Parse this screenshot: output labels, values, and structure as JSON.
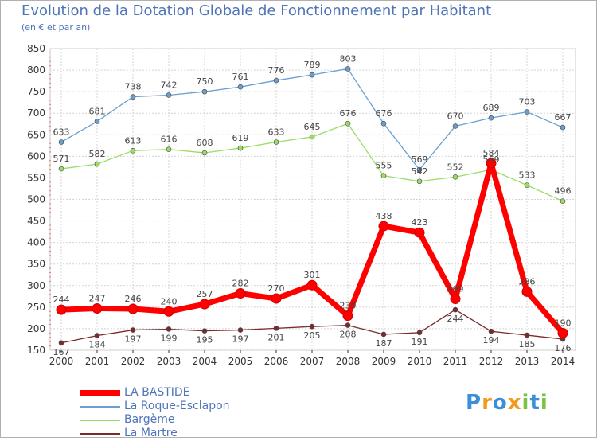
{
  "title": "Evolution de la Dotation Globale de Fonctionnement par Habitant",
  "subtitle": "(en € et par an)",
  "logo_text": "Proxiti",
  "chart_data": {
    "type": "line",
    "x": [
      "2000",
      "2001",
      "2002",
      "2003",
      "2004",
      "2005",
      "2006",
      "2007",
      "2008",
      "2009",
      "2010",
      "2011",
      "2012",
      "2013",
      "2014"
    ],
    "ylim": [
      150,
      850
    ],
    "yticks": [
      150,
      200,
      250,
      300,
      350,
      400,
      450,
      500,
      550,
      600,
      650,
      700,
      750,
      800,
      850
    ],
    "grid": true,
    "legend_position": "bottom-left",
    "series": [
      {
        "name": "LA BASTIDE",
        "color": "#ff0000",
        "values": [
          244,
          247,
          246,
          240,
          257,
          282,
          270,
          301,
          230,
          438,
          423,
          269,
          584,
          286,
          190
        ]
      },
      {
        "name": "La Roque-Esclapon",
        "color": "#6a9fd0",
        "values": [
          633,
          681,
          738,
          742,
          750,
          761,
          776,
          789,
          803,
          676,
          569,
          670,
          689,
          703,
          667
        ]
      },
      {
        "name": "Bargème",
        "color": "#99dd66",
        "values": [
          571,
          582,
          613,
          616,
          608,
          619,
          633,
          645,
          676,
          555,
          542,
          552,
          569,
          533,
          496
        ]
      },
      {
        "name": "La Martre",
        "color": "#7a2b2b",
        "values": [
          167,
          184,
          197,
          199,
          195,
          197,
          201,
          205,
          208,
          187,
          191,
          244,
          194,
          185,
          176
        ]
      }
    ]
  }
}
